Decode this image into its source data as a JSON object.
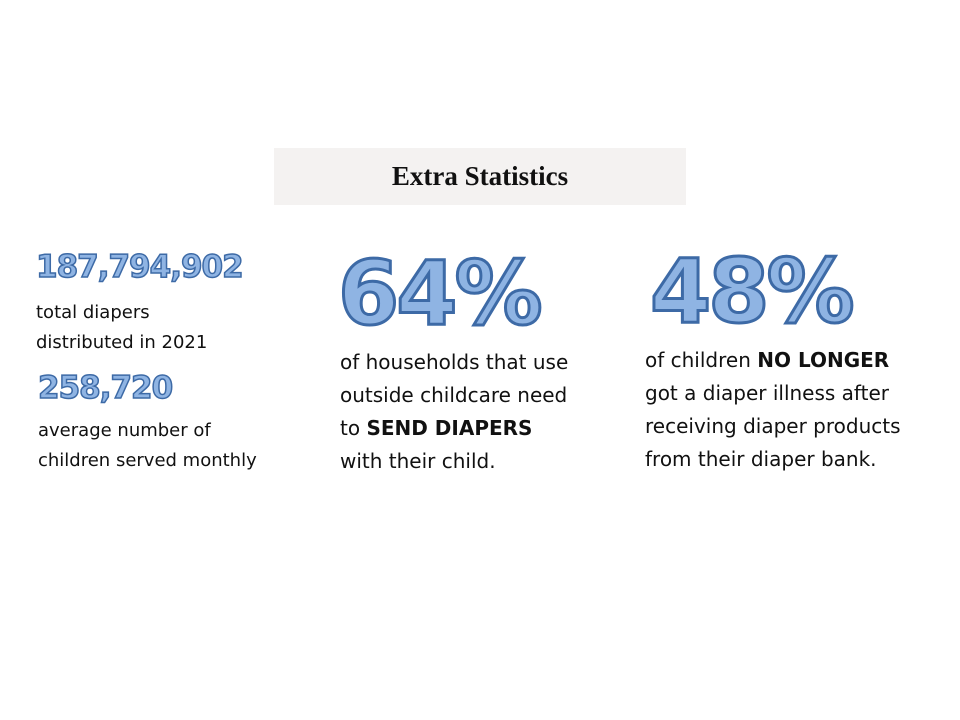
{
  "title": "Extra Statistics",
  "stats": {
    "total_diapers": {
      "number": "187,794,902",
      "line1": "total diapers",
      "line2": "distributed in 2021"
    },
    "children_served": {
      "number": "258,720",
      "line1": "average number of",
      "line2": "children served monthly"
    },
    "childcare": {
      "number": "64%",
      "line1": "of households that use",
      "line2": "outside childcare need",
      "line3_pre": "to ",
      "line3_bold": "SEND DIAPERS",
      "line4": "with their child."
    },
    "illness": {
      "number": "48%",
      "line1_pre": "of children ",
      "line1_bold": "NO LONGER",
      "line2": "got a diaper illness after",
      "line3": "receiving diaper products",
      "line4": "from their diaper bank."
    }
  },
  "colors": {
    "number_fill": "#8fb4e3",
    "number_stroke": "#3d6aa6",
    "title_bg": "#f4f2f1"
  }
}
